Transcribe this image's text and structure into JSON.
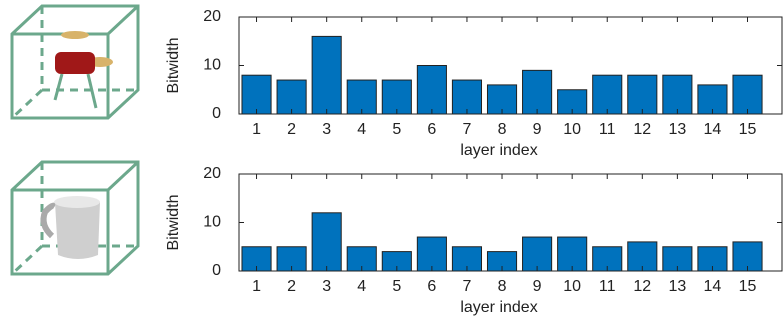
{
  "chart_data": [
    {
      "type": "bar",
      "y_label": "Bitwidth",
      "x_label": "layer index",
      "categories": [
        "1",
        "2",
        "3",
        "4",
        "5",
        "6",
        "7",
        "8",
        "9",
        "10",
        "11",
        "12",
        "13",
        "14",
        "15"
      ],
      "values": [
        8,
        7,
        16,
        7,
        7,
        10,
        7,
        6,
        9,
        5,
        8,
        8,
        8,
        6,
        8
      ],
      "color": "#0072bd",
      "ylim": [
        0,
        20
      ],
      "yticks": [
        0,
        10,
        20
      ]
    },
    {
      "type": "bar",
      "y_label": "Bitwidth",
      "x_label": "layer index",
      "categories": [
        "1",
        "2",
        "3",
        "4",
        "5",
        "6",
        "7",
        "8",
        "9",
        "10",
        "11",
        "12",
        "13",
        "14",
        "15"
      ],
      "values": [
        5,
        5,
        12,
        5,
        4,
        7,
        5,
        4,
        7,
        7,
        5,
        6,
        5,
        5,
        6
      ],
      "color": "#0072bd",
      "ylim": [
        0,
        20
      ],
      "yticks": [
        0,
        10,
        20
      ]
    }
  ]
}
